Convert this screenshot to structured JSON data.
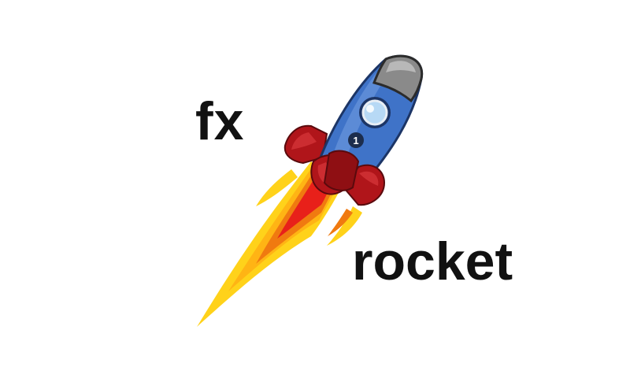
{
  "logo": {
    "word_top": "fx",
    "word_bottom": "rocket",
    "rocket_badge_number": "1",
    "icon": "rocket-icon",
    "colors": {
      "text": "#111111",
      "rocket_body": "#3f73c8",
      "rocket_nose": "#8a8a8a",
      "fins": "#b0151a",
      "flame_outer": "#ffd21a",
      "flame_inner": "#f07a10",
      "flame_core": "#e8201a"
    }
  }
}
